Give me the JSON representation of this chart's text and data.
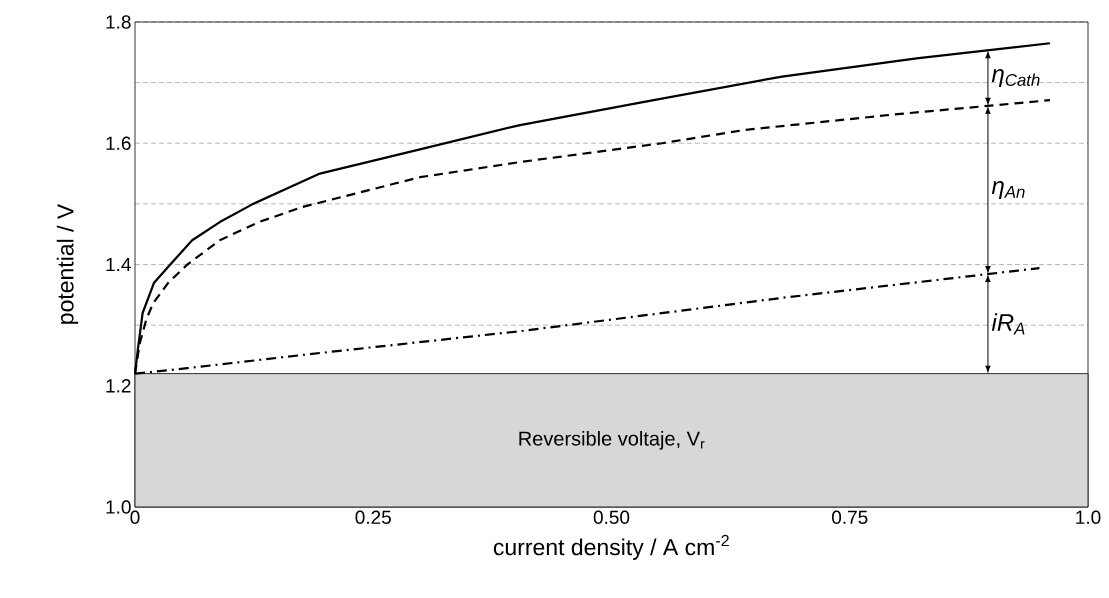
{
  "chart_data": {
    "type": "line",
    "xlabel": "current density / A cm$^{-2}$",
    "ylabel": "potential / V",
    "series": [
      {
        "color": "#000000",
        "line_style": "solid",
        "x": [
          0,
          0.003,
          0.008,
          0.02,
          0.037,
          0.06,
          0.089,
          0.124,
          0.194,
          0.299,
          0.404,
          0.54,
          0.679,
          0.82,
          0.96
        ],
        "values": [
          1.22,
          1.26,
          1.32,
          1.37,
          1.4,
          1.44,
          1.47,
          1.5,
          1.55,
          1.59,
          1.63,
          1.67,
          1.71,
          1.74,
          1.765
        ]
      },
      {
        "color": "#000000",
        "line_style": "dashed",
        "x": [
          0,
          0.005,
          0.012,
          0.019,
          0.035,
          0.055,
          0.089,
          0.13,
          0.176,
          0.299,
          0.404,
          0.553,
          0.64,
          0.8,
          0.96
        ],
        "values": [
          1.22,
          1.27,
          1.31,
          1.336,
          1.37,
          1.4,
          1.44,
          1.47,
          1.495,
          1.544,
          1.569,
          1.6,
          1.622,
          1.648,
          1.671
        ]
      },
      {
        "color": "#000000",
        "line_style": "dashdot",
        "x": [
          0,
          0.055,
          0.194,
          0.404,
          0.679,
          0.949
        ],
        "values": [
          1.22,
          1.229,
          1.254,
          1.29,
          1.345,
          1.394
        ]
      }
    ],
    "bands": [
      {
        "axis": "y",
        "from": 1.0,
        "to": 1.22,
        "label": "Reversible voltaje, V$_{r}$"
      }
    ],
    "annotations": [
      "η$_{Cath}$",
      "η$_{An}$",
      "iR$_{A}$"
    ],
    "xlim": [
      0,
      1.0
    ],
    "ylim": [
      1.0,
      1.8
    ],
    "xticks": [
      0,
      {
        "value": 0.25,
        "label": "0.25"
      },
      {
        "value": 0.5,
        "label": "0.50"
      },
      {
        "value": 0.75,
        "label": "0.75"
      },
      {
        "value": 1.0,
        "label": "1.0"
      }
    ],
    "yticks": [
      {
        "value": 1.0,
        "label": "1.0"
      },
      {
        "value": 1.1,
        "label": null
      },
      {
        "value": 1.2,
        "label": "1.2"
      },
      {
        "value": 1.3,
        "label": null
      },
      {
        "value": 1.4,
        "label": "1.4"
      },
      {
        "value": 1.5,
        "label": null
      },
      {
        "value": 1.6,
        "label": "1.6"
      },
      {
        "value": 1.7,
        "label": null
      },
      {
        "value": 1.8,
        "label": "1.8"
      }
    ],
    "grid": "y"
  }
}
